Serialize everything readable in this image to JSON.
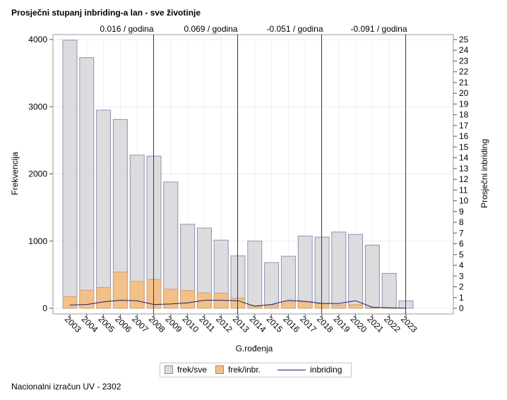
{
  "title": "Prosječni stupanj inbriding-a lan - sve životinje",
  "footer": "Nacionalni izračun UV - 2302",
  "chart_data": {
    "type": "bar",
    "categories": [
      "2003",
      "2004",
      "2005",
      "2006",
      "2007",
      "2008",
      "2009",
      "2010",
      "2011",
      "2012",
      "2013",
      "2014",
      "2015",
      "2016",
      "2017",
      "2018",
      "2019",
      "2020",
      "2021",
      "2022",
      "2023"
    ],
    "series": [
      {
        "name": "frek/sve",
        "type": "bar",
        "color": "#dcdcdf",
        "values": [
          3990,
          3730,
          2950,
          2810,
          2280,
          2265,
          1880,
          1250,
          1195,
          1015,
          780,
          1000,
          680,
          775,
          1075,
          1060,
          1135,
          1100,
          940,
          520,
          110
        ]
      },
      {
        "name": "frek/inbr.",
        "type": "bar",
        "color": "#f3c089",
        "values": [
          175,
          270,
          310,
          540,
          400,
          430,
          285,
          265,
          230,
          225,
          150,
          40,
          50,
          100,
          100,
          70,
          50,
          55,
          10,
          5,
          0
        ]
      },
      {
        "name": "inbriding",
        "type": "line",
        "axis": "right",
        "color": "#1c1c6a",
        "values": [
          0.3,
          0.35,
          0.6,
          0.75,
          0.7,
          0.35,
          0.4,
          0.5,
          0.75,
          0.75,
          0.7,
          0.2,
          0.35,
          0.75,
          0.65,
          0.45,
          0.45,
          0.7,
          0.1,
          0.05,
          0.0
        ]
      }
    ],
    "xlabel": "G.rođenja",
    "ylabel": "Frekvencija",
    "y2label": "Prosječni inbriding",
    "ylim": [
      0,
      4000
    ],
    "yticks": [
      0,
      1000,
      2000,
      3000,
      4000
    ],
    "y2lim": [
      0,
      25
    ],
    "y2ticks": [
      0,
      1,
      2,
      3,
      4,
      5,
      6,
      7,
      8,
      9,
      10,
      11,
      12,
      13,
      14,
      15,
      16,
      17,
      18,
      19,
      20,
      21,
      22,
      23,
      24,
      25
    ],
    "reference_lines": [
      {
        "x": "2008",
        "label": "0.016 / godina"
      },
      {
        "x": "2013",
        "label": "0.069 / godina"
      },
      {
        "x": "2018",
        "label": "-0.051 / godina"
      },
      {
        "x": "2023",
        "label": "-0.091 / godina"
      }
    ],
    "grid": true,
    "legend": "bottom"
  }
}
